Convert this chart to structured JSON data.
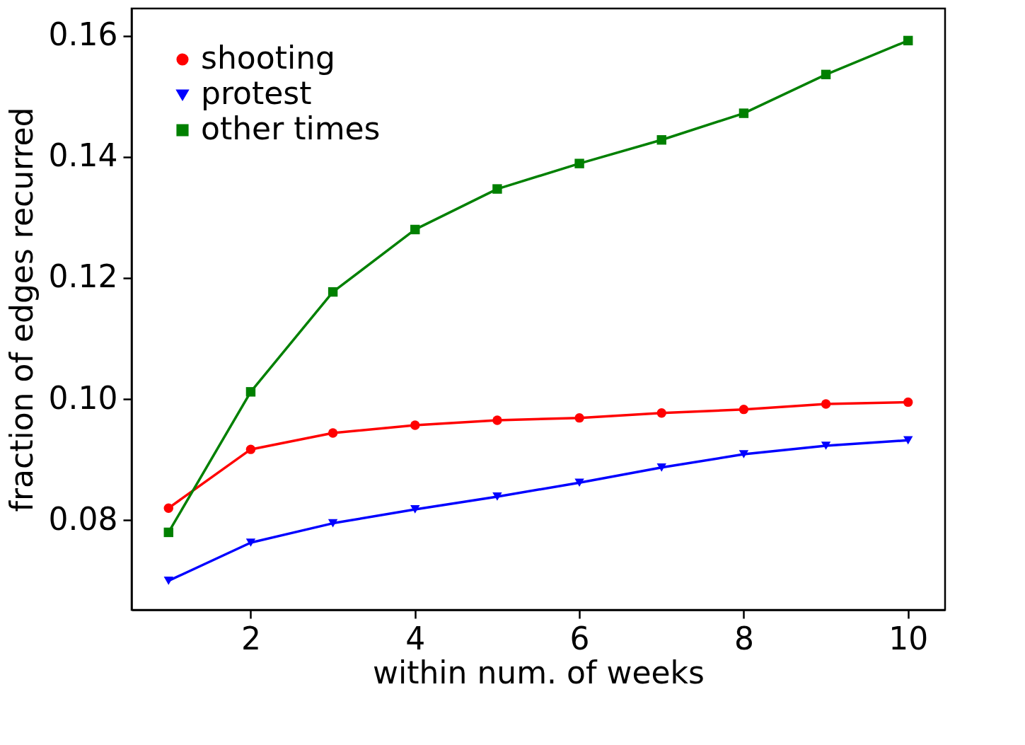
{
  "chart_data": {
    "type": "line",
    "xlabel": "within num. of weeks",
    "ylabel": "fraction of edges recurred",
    "x": [
      1,
      2,
      3,
      4,
      5,
      6,
      7,
      8,
      9,
      10
    ],
    "series": [
      {
        "name": "shooting",
        "color": "#ff0000",
        "marker": "circle",
        "values": [
          0.082,
          0.0917,
          0.0944,
          0.0957,
          0.0965,
          0.0969,
          0.0977,
          0.0983,
          0.0992,
          0.0995
        ]
      },
      {
        "name": "protest",
        "color": "#0000ff",
        "marker": "triangle",
        "values": [
          0.07,
          0.0763,
          0.0795,
          0.0818,
          0.0839,
          0.0862,
          0.0887,
          0.0909,
          0.0923,
          0.0932
        ]
      },
      {
        "name": "other times",
        "color": "#008000",
        "marker": "square",
        "values": [
          0.078,
          0.1012,
          0.1177,
          0.128,
          0.1347,
          0.1389,
          0.1428,
          0.1472,
          0.1536,
          0.1592
        ]
      }
    ],
    "xlim": [
      0.55,
      10.45
    ],
    "ylim": [
      0.0652,
      0.1645
    ],
    "xticks": [
      2,
      4,
      6,
      8,
      10
    ],
    "yticks": [
      {
        "value": 0.08,
        "label": "0.08"
      },
      {
        "value": 0.1,
        "label": "0.10"
      },
      {
        "value": 0.12,
        "label": "0.12"
      },
      {
        "value": 0.14,
        "label": "0.14"
      },
      {
        "value": 0.16,
        "label": "0.16"
      }
    ],
    "grid": false,
    "legend": "top left",
    "line_style": "solid"
  }
}
